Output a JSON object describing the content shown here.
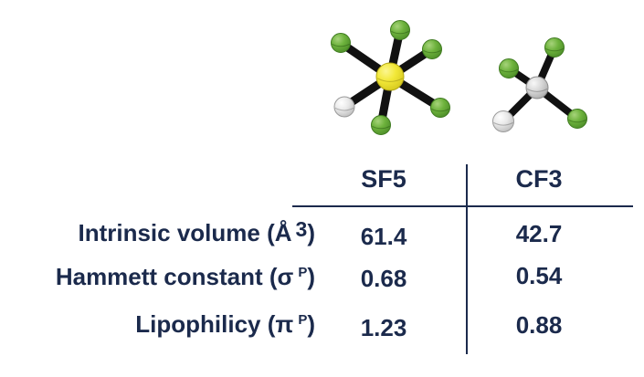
{
  "colors": {
    "text_navy": "#1b2a4c",
    "divider_navy": "#1b2a4c",
    "fluorine_green": "#68af3a",
    "sulfur_yellow": "#f3ea38",
    "carbon_gray": "#d8d8d8",
    "hydrogen_white": "#ececec",
    "bond_black": "#111111"
  },
  "table": {
    "column_headers": [
      "SF5",
      "CF3"
    ],
    "rows": [
      {
        "label_prefix": "Intrinsic volume (Å",
        "label_sup": "3",
        "label_suffix": ")",
        "values": [
          "61.4",
          "42.7"
        ]
      },
      {
        "label_prefix": "Hammett constant (σ",
        "label_sup": "P",
        "label_suffix": ")",
        "values": [
          "0.68",
          "0.54"
        ]
      },
      {
        "label_prefix": "Lipophilicy (π",
        "label_sup": "P",
        "label_suffix": ")",
        "values": [
          "1.23",
          "0.88"
        ]
      }
    ]
  },
  "chart_data": {
    "type": "table",
    "columns": [
      "",
      "SF5",
      "CF3"
    ],
    "rows": [
      [
        "Intrinsic volume (Å3)",
        "61.4",
        "42.7"
      ],
      [
        "Hammett constant (σP)",
        "0.68",
        "0.54"
      ],
      [
        "Lipophilicy (πP)",
        "1.23",
        "0.88"
      ]
    ]
  }
}
